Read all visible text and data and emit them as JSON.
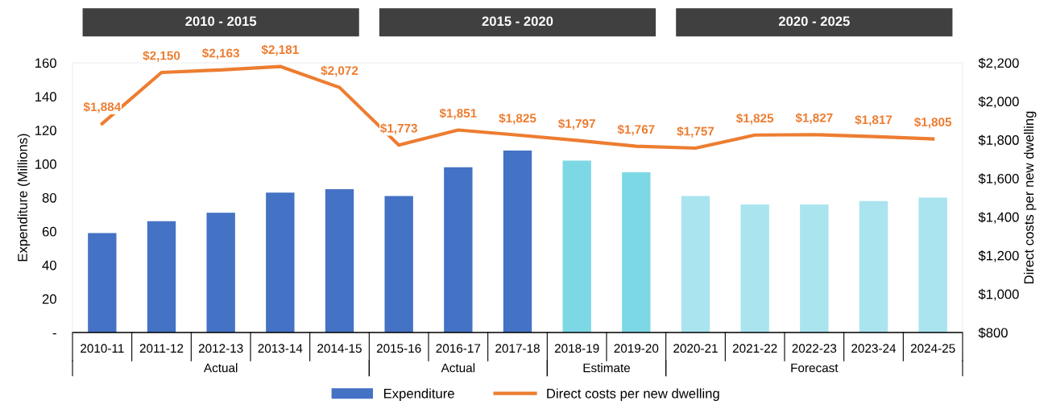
{
  "chart_data": {
    "type": "bar",
    "categories": [
      "2010-11",
      "2011-12",
      "2012-13",
      "2013-14",
      "2014-15",
      "2015-16",
      "2016-17",
      "2017-18",
      "2018-19",
      "2019-20",
      "2020-21",
      "2021-22",
      "2022-23",
      "2023-24",
      "2024-25"
    ],
    "ylabel": "Expenditure (Millions)",
    "y2label": "Direct costs per new dwelling",
    "ylim": [
      0,
      160
    ],
    "yticks": [
      {
        "value": 0,
        "label": "-"
      },
      20,
      40,
      60,
      80,
      100,
      120,
      140,
      160
    ],
    "y2lim": [
      800,
      2200
    ],
    "y2ticks": [
      {
        "value": 800,
        "label": "$800"
      },
      {
        "value": 1000,
        "label": "$1,000"
      },
      {
        "value": 1200,
        "label": "$1,200"
      },
      {
        "value": 1400,
        "label": "$1,400"
      },
      {
        "value": 1600,
        "label": "$1,600"
      },
      {
        "value": 1800,
        "label": "$1,800"
      },
      {
        "value": 2000,
        "label": "$2,000"
      },
      {
        "value": 2200,
        "label": "$2,200"
      }
    ],
    "series": [
      {
        "name": "Expenditure",
        "colors": [
          "#4472c4",
          "#4472c4",
          "#4472c4",
          "#4472c4",
          "#4472c4",
          "#4472c4",
          "#4472c4",
          "#4472c4",
          "#7dd8e6",
          "#7dd8e6",
          "#a9e4ef",
          "#a9e4ef",
          "#a9e4ef",
          "#a9e4ef",
          "#a9e4ef"
        ],
        "color": "#4472c4",
        "values": [
          59,
          66,
          71,
          83,
          85,
          81,
          98,
          108,
          102,
          95,
          81,
          76,
          76,
          78,
          80
        ]
      },
      {
        "name": "Direct costs per new dwelling",
        "type": "line",
        "axis": "y2",
        "color": "#ed7d31",
        "values": [
          1884,
          2150,
          2163,
          2181,
          2072,
          1773,
          1851,
          1825,
          1797,
          1767,
          1757,
          1825,
          1827,
          1817,
          1805
        ],
        "value_labels": [
          "$1,884",
          "$2,150",
          "$2,163",
          "$2,181",
          "$2,072",
          "$1,773",
          "$1,851",
          "$1,825",
          "$1,797",
          "$1,767",
          "$1,757",
          "$1,825",
          "$1,827",
          "$1,817",
          "$1,805"
        ]
      }
    ],
    "annotations": [
      "2010 - 2015",
      "2015 - 2020",
      "2020 - 2025",
      "Actual",
      "Actual",
      "Estimate",
      "Forecast"
    ],
    "legend": "bottom",
    "grid": false
  }
}
